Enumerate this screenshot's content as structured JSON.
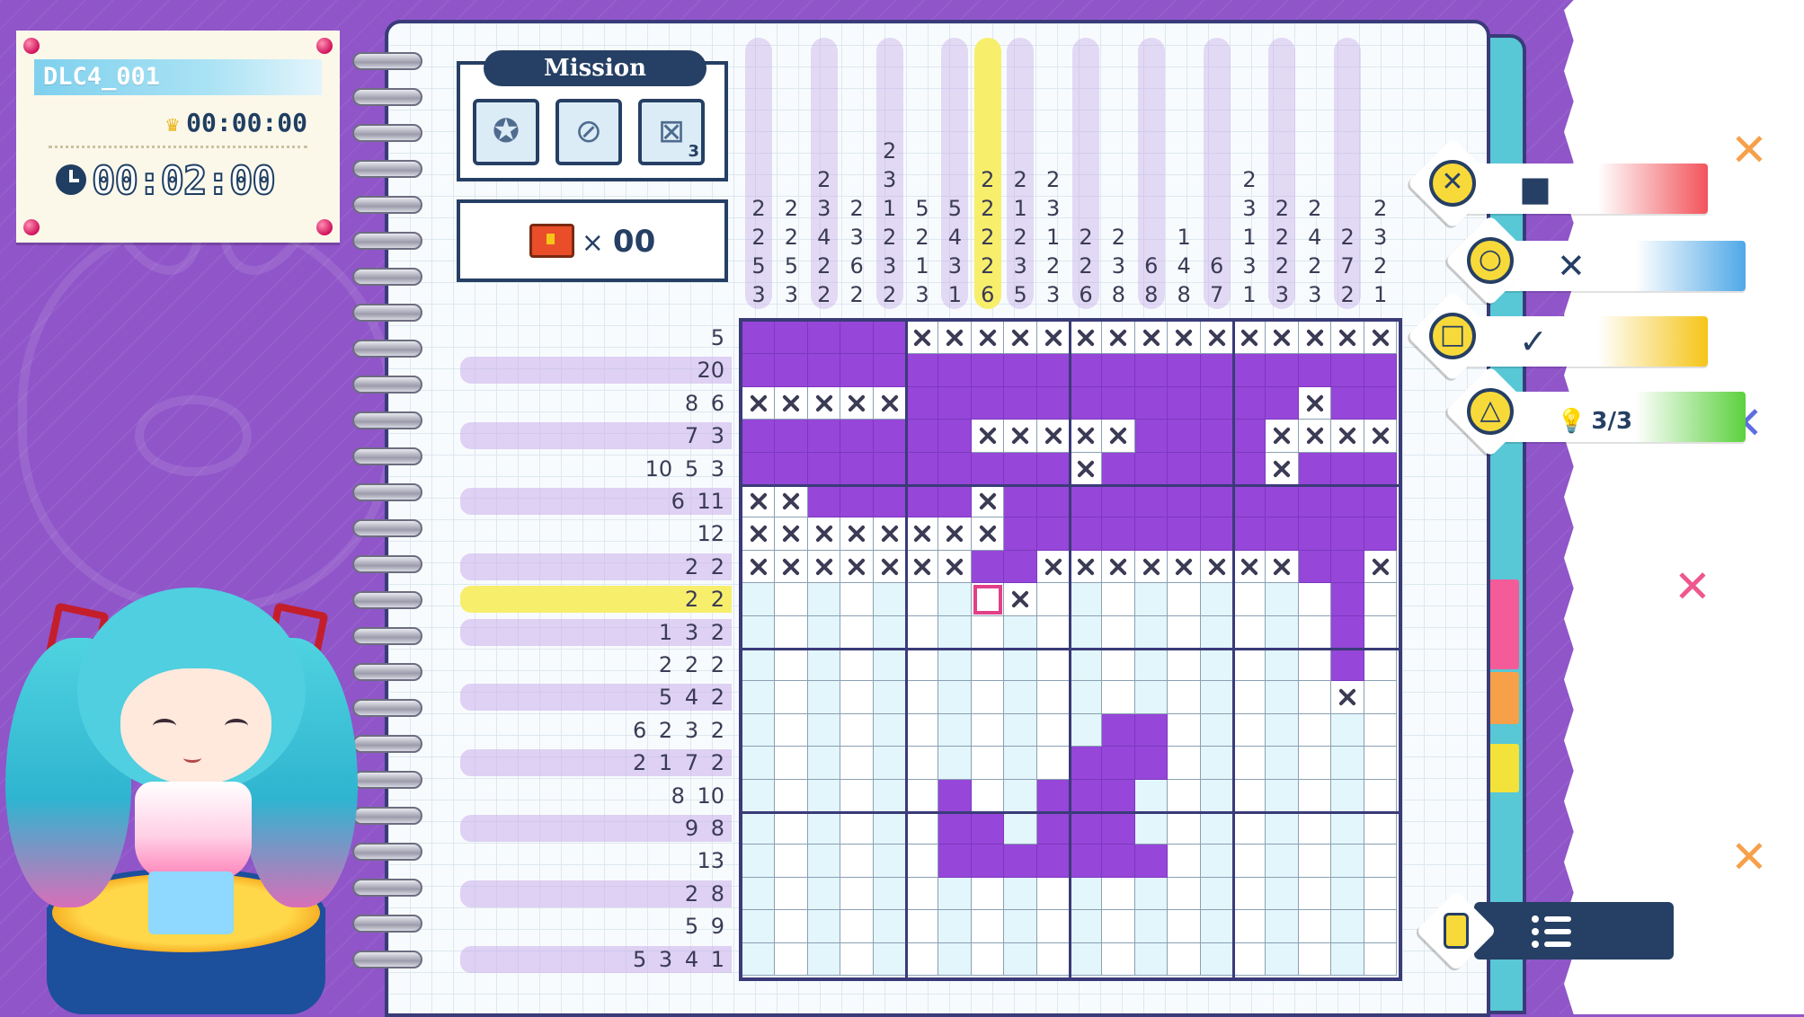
{
  "level": {
    "id": "DLC4_001",
    "best_time": "00:00:00",
    "current_time": "00:02:00"
  },
  "mission": {
    "title": "Mission",
    "slots": [
      {
        "icon": "star-badge-icon"
      },
      {
        "icon": "no-hint-icon"
      },
      {
        "icon": "mistake-limit-icon",
        "badge": "3"
      }
    ]
  },
  "treasure": {
    "icon": "treasure-chest-icon",
    "times": "×",
    "count": "00"
  },
  "column_clues": [
    [
      "2",
      "2",
      "5",
      "3"
    ],
    [
      "2",
      "2",
      "5",
      "3"
    ],
    [
      "2",
      "3",
      "4",
      "2",
      "2"
    ],
    [
      "2",
      "3",
      "6",
      "2"
    ],
    [
      "2",
      "3",
      "1",
      "2",
      "3",
      "2"
    ],
    [
      "5",
      "2",
      "1",
      "3"
    ],
    [
      "5",
      "4",
      "3",
      "1"
    ],
    [
      "2",
      "2",
      "2",
      "2",
      "6"
    ],
    [
      "2",
      "1",
      "2",
      "3",
      "5"
    ],
    [
      "2",
      "3",
      "1",
      "2",
      "3"
    ],
    [
      "2",
      "2",
      "6"
    ],
    [
      "2",
      "3",
      "8"
    ],
    [
      "6",
      "8"
    ],
    [
      "1",
      "4",
      "8"
    ],
    [
      "6",
      "7"
    ],
    [
      "2",
      "3",
      "1",
      "3",
      "1"
    ],
    [
      "2",
      "2",
      "2",
      "3"
    ],
    [
      "2",
      "4",
      "2",
      "3"
    ],
    [
      "2",
      "7",
      "2"
    ],
    [
      "2",
      "3",
      "2",
      "1"
    ]
  ],
  "row_clues": [
    "5",
    "20",
    "8 6",
    "7 3",
    "10 5 3",
    "6 11",
    "12",
    "2 2",
    "2 2",
    "1 3 2",
    "2 2 2",
    "5 4 2",
    "6 2 3 2",
    "2 1 7 2",
    "8 10",
    "9 8",
    "13",
    "2 8",
    "5 9",
    "5 3 4 1"
  ],
  "grid_rows": [
    "#####XXXXXXXXXXXXXXX",
    "####################",
    "XXXXX############X##",
    "#######XXXXX####XXXX",
    "##########X#####X###",
    "XX#####X############",
    "XXXXXXXX############",
    "XXXXXXX##XXXXXXXX##X",
    "......._X.........#.",
    "..................#.",
    "..................#.",
    "..................X.",
    "...........##.......",
    "..........###.......",
    "......#..###........",
    "......##.###........",
    "......#######.......",
    "....................",
    "....................",
    "...................."
  ],
  "controls": [
    {
      "button": "✕",
      "action": "■",
      "color": "#f2545b"
    },
    {
      "button": "○",
      "action": "✕",
      "color": "#4fa8e8"
    },
    {
      "button": "□",
      "action": "✓",
      "color": "#f5c518"
    },
    {
      "button": "△",
      "action": "3/3",
      "color": "#5bd13d"
    }
  ],
  "menu": {
    "icon": "menu-list-icon",
    "hint_icon": "hint-bulb-icon"
  },
  "colors": {
    "fill": "#9646d8",
    "accent": "#f7ee6c",
    "dark": "#263f64"
  }
}
